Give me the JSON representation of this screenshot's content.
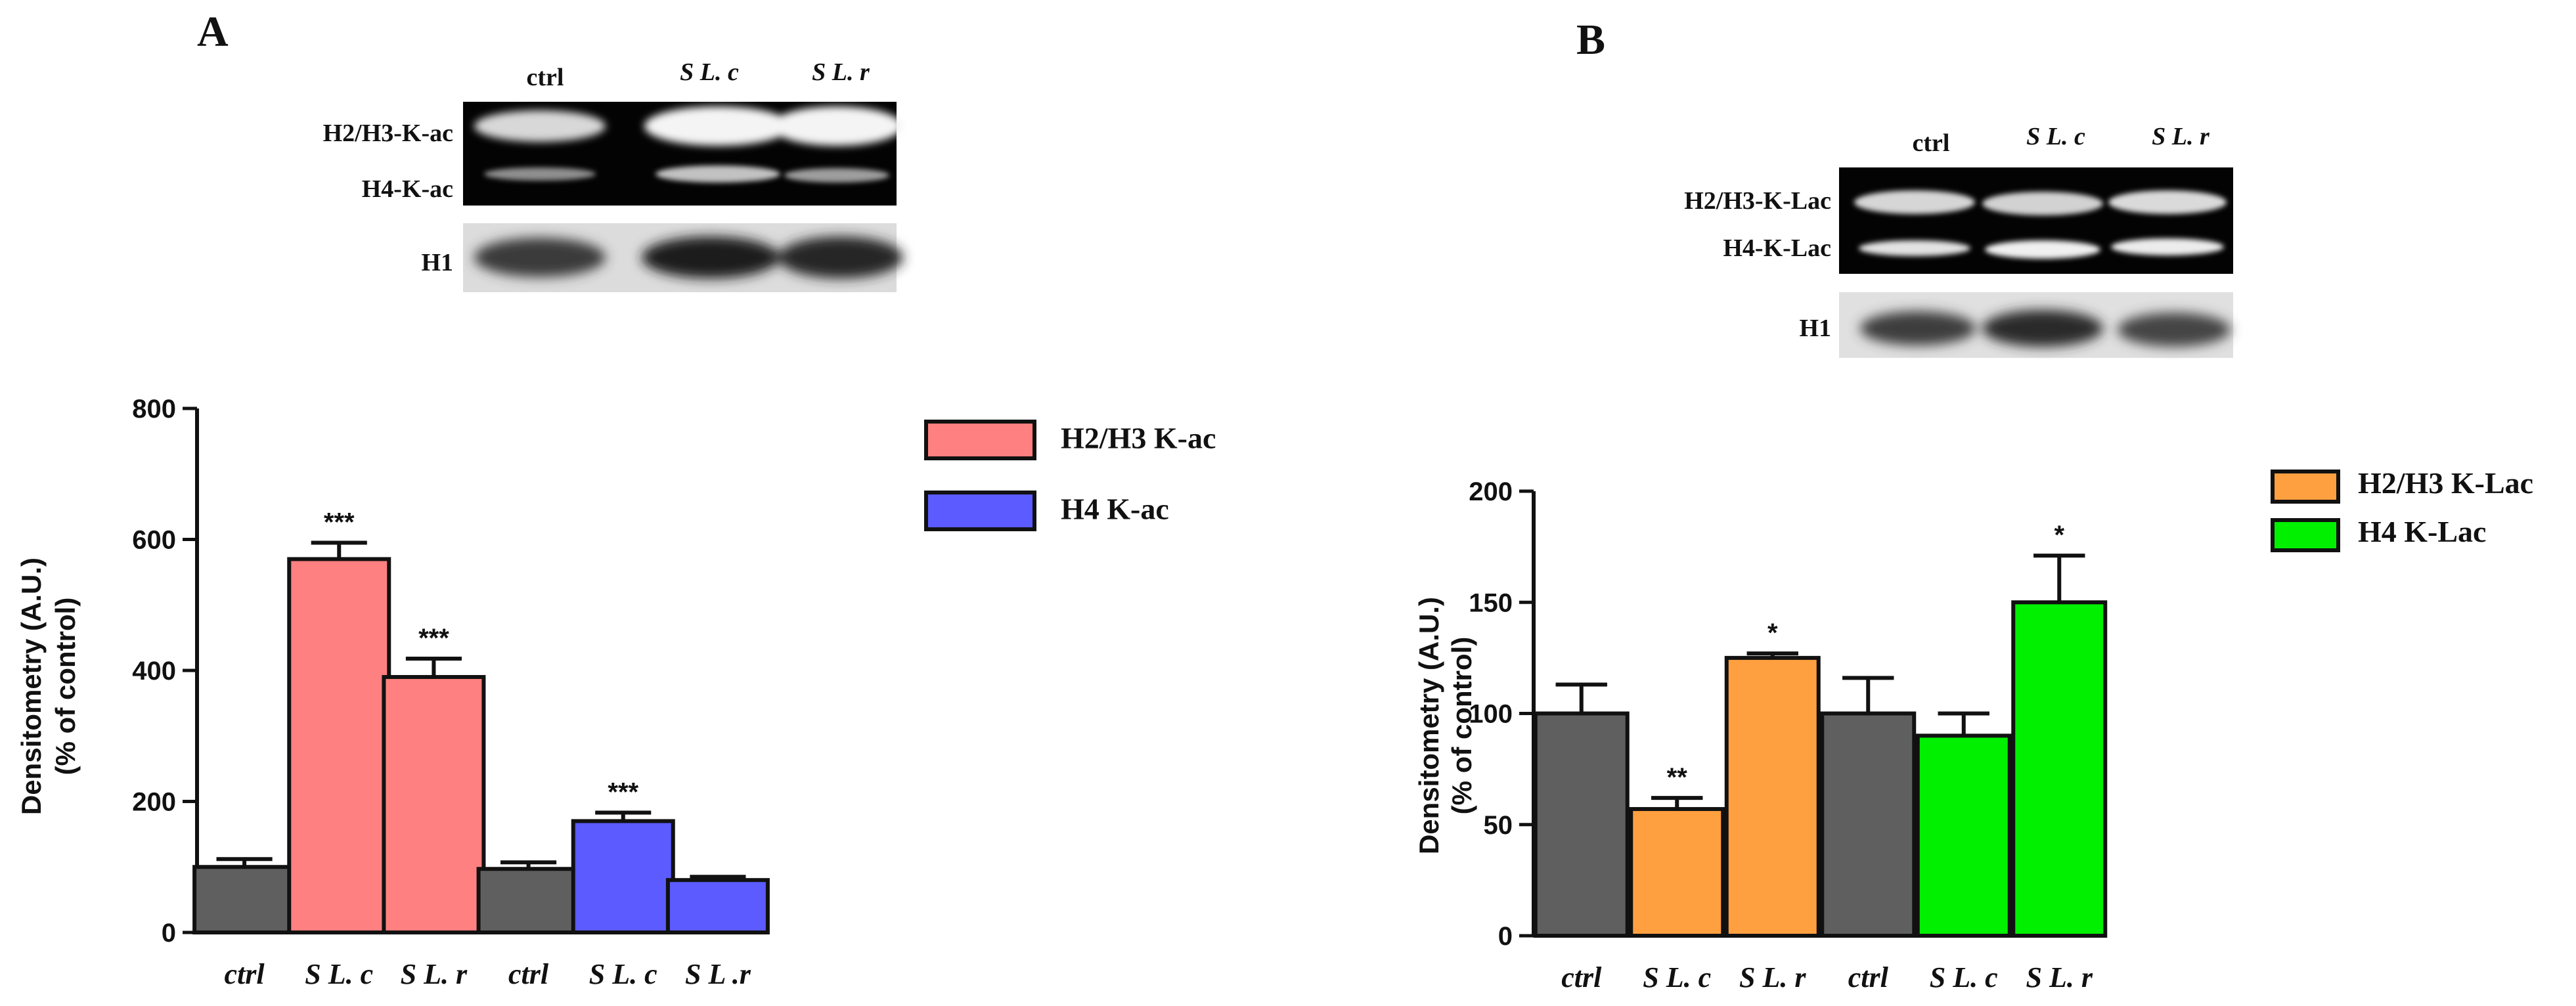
{
  "panels": [
    {
      "letter": "A",
      "blot": {
        "lanes": [
          "ctrl",
          "S L. c",
          "S L. r"
        ],
        "row_labels": [
          "H2/H3-K-ac",
          "H4-K-ac",
          "H1"
        ]
      },
      "chart_data": {
        "type": "bar",
        "ylabel_line1": "Densitometry (A.U.)",
        "ylabel_line2": "(% of control)",
        "ylim": [
          0,
          800
        ],
        "yticks": [
          0,
          200,
          400,
          600,
          800
        ],
        "categories": [
          "ctrl",
          "S L. c",
          "S L. r",
          "ctrl",
          "S L. c",
          "S L .r"
        ],
        "values": [
          100,
          570,
          390,
          97,
          170,
          80
        ],
        "errors": [
          12,
          25,
          28,
          10,
          13,
          5
        ],
        "significance": [
          "",
          "***",
          "***",
          "",
          "***",
          ""
        ],
        "bar_series": [
          0,
          1,
          1,
          0,
          2,
          2
        ],
        "series": [
          {
            "name": "H2/H3 K-ac",
            "color": "#ff8080"
          },
          {
            "name": "H4 K-ac",
            "color": "#5b5bff"
          }
        ],
        "neutral_color": "#5f5f5f",
        "legend_position": "top-right"
      }
    },
    {
      "letter": "B",
      "blot": {
        "lanes": [
          "ctrl",
          "S L. c",
          "S L. r"
        ],
        "row_labels": [
          "H2/H3-K-Lac",
          "H4-K-Lac",
          "H1"
        ]
      },
      "chart_data": {
        "type": "bar",
        "ylabel_line1": "Densitometry (A.U.)",
        "ylabel_line2": "(% of control)",
        "ylim": [
          0,
          200
        ],
        "yticks": [
          0,
          50,
          100,
          150,
          200
        ],
        "categories": [
          "ctrl",
          "S L. c",
          "S L. r",
          "ctrl",
          "S L. c",
          "S L. r"
        ],
        "values": [
          100,
          57,
          125,
          100,
          90,
          150
        ],
        "errors": [
          13,
          5,
          2,
          16,
          10,
          21
        ],
        "significance": [
          "",
          "**",
          "*",
          "",
          "",
          "*"
        ],
        "bar_series": [
          0,
          1,
          1,
          0,
          2,
          2
        ],
        "series": [
          {
            "name": "H2/H3 K-Lac",
            "color": "#ffa040"
          },
          {
            "name": "H4 K-Lac",
            "color": "#00f000"
          }
        ],
        "neutral_color": "#5f5f5f",
        "legend_position": "top-right"
      }
    }
  ]
}
